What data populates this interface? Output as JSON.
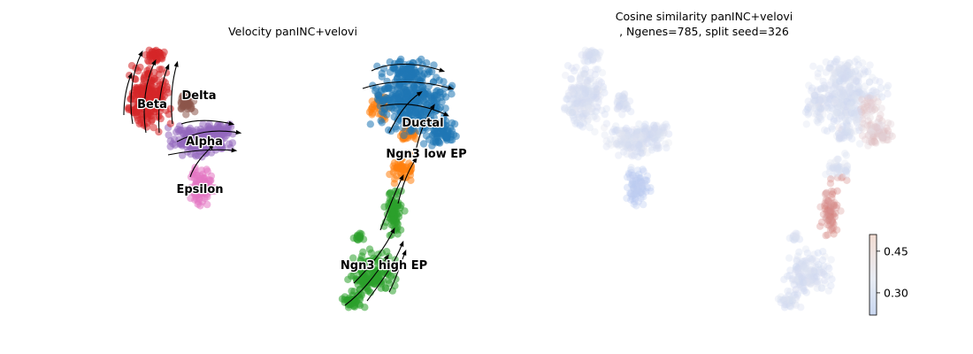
{
  "chart_data": [
    {
      "type": "scatter",
      "title": "Velocity panINC+velovi",
      "xlabel": "",
      "ylabel": "",
      "grid": false,
      "legend": "on data",
      "clusters": [
        {
          "name": "Beta",
          "color": "#d62728"
        },
        {
          "name": "Delta",
          "color": "#8c564b"
        },
        {
          "name": "Alpha",
          "color": "#9467bd"
        },
        {
          "name": "Epsilon",
          "color": "#e377c2"
        },
        {
          "name": "Ductal",
          "color": "#1f77b4"
        },
        {
          "name": "Ngn3 low EP",
          "color": "#ff7f0e"
        },
        {
          "name": "Ngn3 high EP",
          "color": "#2ca02c"
        }
      ],
      "overlay": "velocity streamlines"
    },
    {
      "type": "scatter",
      "title_line1": "Cosine similarity panINC+velovi",
      "title_line2": ", Ngenes=785, split seed=326",
      "xlabel": "",
      "ylabel": "",
      "grid": false,
      "colormap": "coolwarm",
      "colorbar": {
        "ticks": [
          0.3,
          0.45
        ],
        "tick_labels": [
          "0.30",
          "0.45"
        ],
        "range": [
          0.22,
          0.51
        ]
      }
    }
  ]
}
